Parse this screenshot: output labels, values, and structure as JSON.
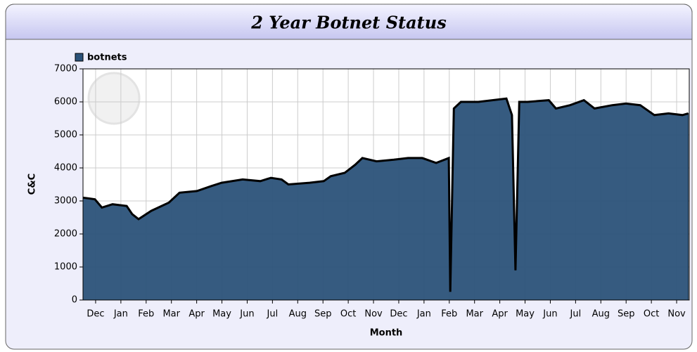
{
  "chart_data": {
    "type": "area",
    "title": "2 Year Botnet Status",
    "x_label": "Month",
    "y_label": "C&C",
    "x": [
      0,
      0.47,
      0.75,
      1.17,
      1.73,
      1.95,
      2.2,
      2.7,
      3.4,
      3.82,
      4.51,
      5.07,
      5.49,
      6.32,
      7.02,
      7.44,
      7.86,
      8.13,
      8.97,
      9.53,
      9.81,
      10.36,
      10.78,
      11.06,
      11.62,
      12.31,
      12.87,
      13.43,
      13.98,
      14.48,
      14.54,
      14.68,
      14.96,
      15.65,
      16.21,
      16.76,
      16.98,
      17.12,
      17.27,
      17.6,
      18.44,
      18.72,
      19.28,
      19.83,
      20.25,
      20.95,
      21.5,
      22.06,
      22.62,
      23.18,
      23.73,
      23.96
    ],
    "series": [
      {
        "name": "botnets",
        "color": "#2b5279",
        "values": [
          3100,
          3050,
          2800,
          2900,
          2850,
          2600,
          2450,
          2700,
          2950,
          3250,
          3300,
          3450,
          3550,
          3650,
          3600,
          3700,
          3650,
          3500,
          3550,
          3600,
          3750,
          3850,
          4100,
          4300,
          4200,
          4250,
          4300,
          4300,
          4150,
          4300,
          250,
          5800,
          6000,
          6000,
          6050,
          6100,
          5600,
          900,
          6000,
          6000,
          6050,
          5800,
          5900,
          6050,
          5800,
          5900,
          5950,
          5900,
          5600,
          5650,
          5600,
          5650
        ]
      }
    ],
    "xlim": [
      0,
      24
    ],
    "xticks": [
      {
        "value": 0.5,
        "label": "Dec"
      },
      {
        "value": 1.5,
        "label": "Jan"
      },
      {
        "value": 2.5,
        "label": "Feb"
      },
      {
        "value": 3.5,
        "label": "Mar"
      },
      {
        "value": 4.5,
        "label": "Apr"
      },
      {
        "value": 5.5,
        "label": "May"
      },
      {
        "value": 6.5,
        "label": "Jun"
      },
      {
        "value": 7.5,
        "label": "Jul"
      },
      {
        "value": 8.5,
        "label": "Aug"
      },
      {
        "value": 9.5,
        "label": "Sep"
      },
      {
        "value": 10.5,
        "label": "Oct"
      },
      {
        "value": 11.5,
        "label": "Nov"
      },
      {
        "value": 12.5,
        "label": "Dec"
      },
      {
        "value": 13.5,
        "label": "Jan"
      },
      {
        "value": 14.5,
        "label": "Feb"
      },
      {
        "value": 15.5,
        "label": "Mar"
      },
      {
        "value": 16.5,
        "label": "Apr"
      },
      {
        "value": 17.5,
        "label": "May"
      },
      {
        "value": 18.5,
        "label": "Jun"
      },
      {
        "value": 19.5,
        "label": "Jul"
      },
      {
        "value": 20.5,
        "label": "Aug"
      },
      {
        "value": 21.5,
        "label": "Sep"
      },
      {
        "value": 22.5,
        "label": "Oct"
      },
      {
        "value": 23.5,
        "label": "Nov"
      }
    ],
    "ylim": [
      0,
      7000
    ],
    "yticks": [
      0,
      1000,
      2000,
      3000,
      4000,
      5000,
      6000,
      7000
    ],
    "grid": true
  }
}
